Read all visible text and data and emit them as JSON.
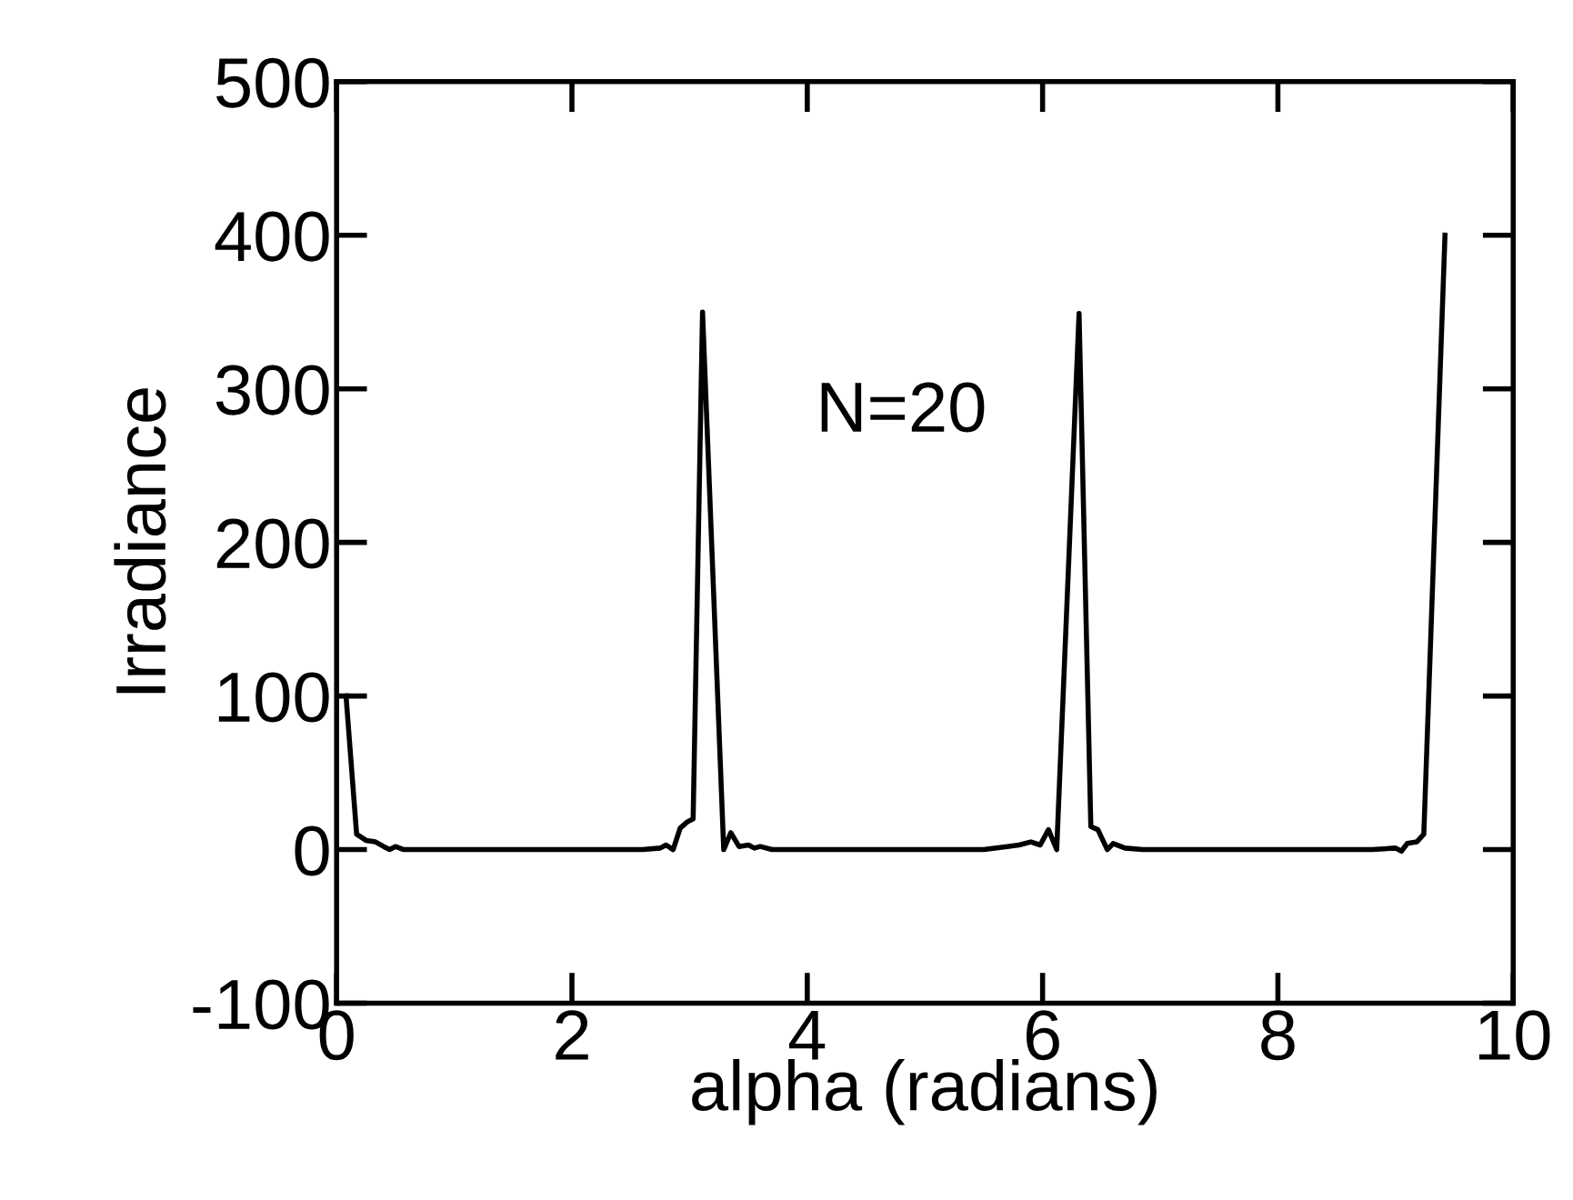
{
  "chart_data": {
    "type": "line",
    "xlabel": "alpha (radians)",
    "ylabel": "Irradiance",
    "annotations": [
      "N=20"
    ],
    "xlim": [
      0,
      10
    ],
    "ylim": [
      -100,
      500
    ],
    "xticks": [
      0,
      2,
      4,
      6,
      8,
      10
    ],
    "yticks": [
      -100,
      0,
      100,
      200,
      300,
      400,
      500
    ],
    "grid": false,
    "legend": false,
    "marker": "none",
    "line_style": "solid",
    "series": [
      {
        "color": "#000000",
        "x": [
          0.08,
          0.17,
          0.25,
          0.33,
          0.4,
          0.45,
          0.5,
          0.57,
          0.7,
          2.0,
          2.6,
          2.75,
          2.8,
          2.86,
          2.92,
          2.98,
          3.03,
          3.11,
          3.29,
          3.35,
          3.42,
          3.5,
          3.55,
          3.6,
          3.7,
          5.5,
          5.7,
          5.8,
          5.9,
          5.98,
          6.05,
          6.12,
          6.31,
          6.41,
          6.47,
          6.55,
          6.6,
          6.7,
          6.85,
          8.8,
          9.0,
          9.05,
          9.1,
          9.18,
          9.24,
          9.42
        ],
        "values": [
          100,
          10,
          6,
          5,
          2,
          0,
          2,
          0,
          0,
          0,
          0,
          1,
          3,
          0,
          14,
          18,
          20,
          350,
          0,
          11,
          2,
          3,
          1,
          2,
          0,
          0,
          2,
          3,
          5,
          3,
          13,
          0,
          349,
          15,
          13,
          0,
          4,
          1,
          0,
          0,
          1,
          -1,
          4,
          5,
          10,
          400
        ]
      }
    ]
  }
}
